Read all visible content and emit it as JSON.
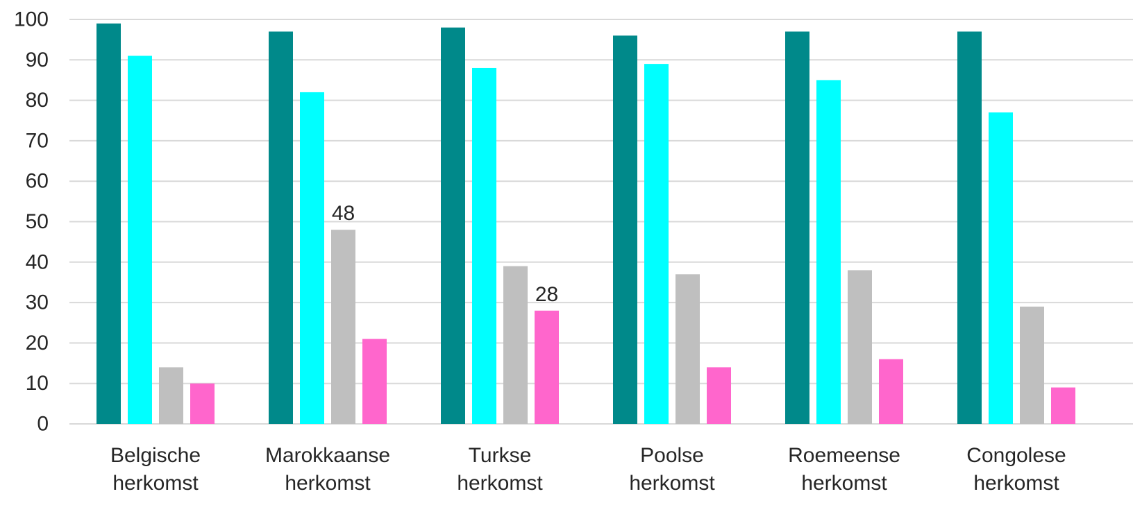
{
  "chart_data": {
    "type": "bar",
    "categories": [
      [
        "Belgische",
        "herkomst"
      ],
      [
        "Marokkaanse",
        "herkomst"
      ],
      [
        "Turkse",
        "herkomst"
      ],
      [
        "Poolse",
        "herkomst"
      ],
      [
        "Roemeense",
        "herkomst"
      ],
      [
        "Congolese",
        "herkomst"
      ]
    ],
    "series": [
      {
        "color": "#00898A",
        "values": [
          99,
          97,
          98,
          96,
          97,
          97
        ]
      },
      {
        "color": "#00FFFF",
        "values": [
          91,
          82,
          88,
          89,
          85,
          77
        ]
      },
      {
        "color": "#BFBFBF",
        "values": [
          14,
          48,
          39,
          37,
          38,
          29
        ]
      },
      {
        "color": "#FF66CC",
        "values": [
          10,
          21,
          28,
          14,
          16,
          9
        ]
      }
    ],
    "data_labels": [
      {
        "series": 2,
        "category": 1,
        "text": "48"
      },
      {
        "series": 3,
        "category": 2,
        "text": "28"
      }
    ],
    "yticks": [
      "0",
      "10",
      "20",
      "30",
      "40",
      "50",
      "60",
      "70",
      "80",
      "90",
      "100"
    ],
    "ylim": [
      0,
      100
    ],
    "grid": true,
    "gridline_color": "#D9D9D9",
    "title": "",
    "xlabel": "",
    "ylabel": ""
  }
}
